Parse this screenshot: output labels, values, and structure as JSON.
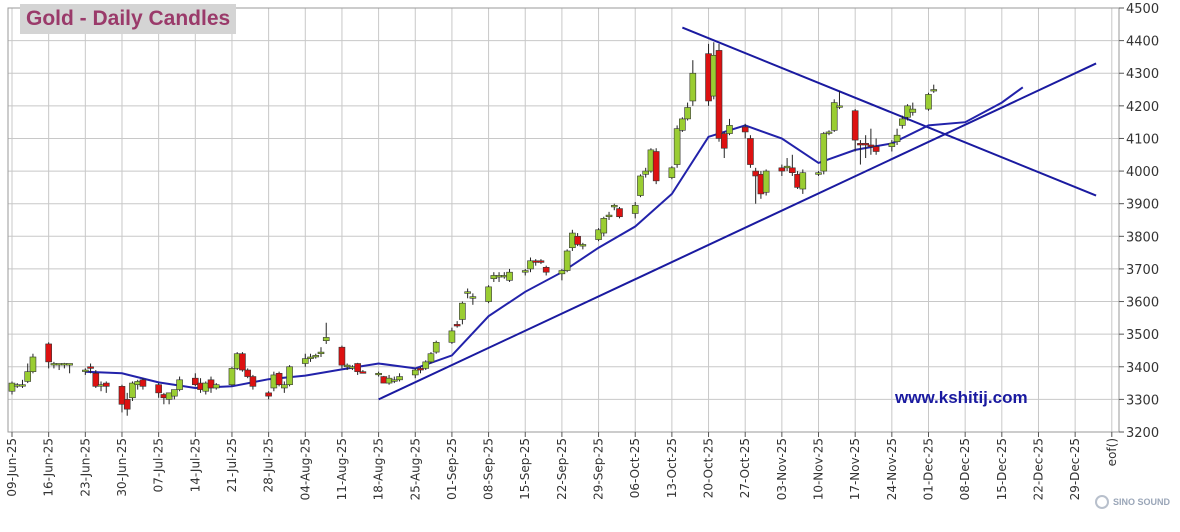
{
  "chart_data": {
    "type": "candlestick",
    "title": "Gold - Daily Candles",
    "annotation": "www.kshitij.com",
    "watermark": "SINO SOUND",
    "y_axis_side": "right",
    "ylim": [
      3200,
      4500
    ],
    "yticks": [
      3200,
      3300,
      3400,
      3500,
      3600,
      3700,
      3800,
      3900,
      4000,
      4100,
      4200,
      4300,
      4400,
      4500
    ],
    "x_tick_labels": [
      "09-Jun-25",
      "16-Jun-25",
      "23-Jun-25",
      "30-Jun-25",
      "07-Jul-25",
      "14-Jul-25",
      "21-Jul-25",
      "28-Jul-25",
      "04-Aug-25",
      "11-Aug-25",
      "18-Aug-25",
      "25-Aug-25",
      "01-Sep-25",
      "08-Sep-25",
      "15-Sep-25",
      "22-Sep-25",
      "29-Sep-25",
      "06-Oct-25",
      "13-Oct-25",
      "20-Oct-25",
      "27-Oct-25",
      "03-Nov-25",
      "10-Nov-25",
      "17-Nov-25",
      "24-Nov-25",
      "01-Dec-25",
      "08-Dec-25",
      "15-Dec-25",
      "22-Dec-25",
      "29-Dec-25",
      "eof()"
    ],
    "grid": true,
    "colors": {
      "up": "#9acd32",
      "down": "#dd1111",
      "wick": "#222222",
      "ma": "#2222aa",
      "trend": "#1a1aa0",
      "grid": "#c8c8c8"
    },
    "candles": [
      {
        "date": "2025-06-09",
        "o": 3325,
        "h": 3355,
        "l": 3315,
        "c": 3350
      },
      {
        "date": "2025-06-10",
        "o": 3345,
        "h": 3350,
        "l": 3335,
        "c": 3345
      },
      {
        "date": "2025-06-11",
        "o": 3345,
        "h": 3360,
        "l": 3335,
        "c": 3345
      },
      {
        "date": "2025-06-12",
        "o": 3355,
        "h": 3410,
        "l": 3350,
        "c": 3385
      },
      {
        "date": "2025-06-13",
        "o": 3385,
        "h": 3440,
        "l": 3380,
        "c": 3430
      },
      {
        "date": "2025-06-16",
        "o": 3470,
        "h": 3475,
        "l": 3395,
        "c": 3415
      },
      {
        "date": "2025-06-17",
        "o": 3410,
        "h": 3415,
        "l": 3395,
        "c": 3410
      },
      {
        "date": "2025-06-18",
        "o": 3410,
        "h": 3410,
        "l": 3390,
        "c": 3410
      },
      {
        "date": "2025-06-19",
        "o": 3410,
        "h": 3412,
        "l": 3395,
        "c": 3410
      },
      {
        "date": "2025-06-20",
        "o": 3405,
        "h": 3410,
        "l": 3380,
        "c": 3410
      },
      {
        "date": "2025-06-23",
        "o": 3390,
        "h": 3395,
        "l": 3375,
        "c": 3390
      },
      {
        "date": "2025-06-24",
        "o": 3400,
        "h": 3410,
        "l": 3380,
        "c": 3395
      },
      {
        "date": "2025-06-25",
        "o": 3380,
        "h": 3390,
        "l": 3335,
        "c": 3340
      },
      {
        "date": "2025-06-26",
        "o": 3345,
        "h": 3355,
        "l": 3325,
        "c": 3345
      },
      {
        "date": "2025-06-27",
        "o": 3350,
        "h": 3355,
        "l": 3320,
        "c": 3340
      },
      {
        "date": "2025-06-30",
        "o": 3340,
        "h": 3345,
        "l": 3260,
        "c": 3285
      },
      {
        "date": "2025-07-01",
        "o": 3300,
        "h": 3320,
        "l": 3250,
        "c": 3270
      },
      {
        "date": "2025-07-02",
        "o": 3305,
        "h": 3355,
        "l": 3295,
        "c": 3350
      },
      {
        "date": "2025-07-03",
        "o": 3345,
        "h": 3360,
        "l": 3330,
        "c": 3355
      },
      {
        "date": "2025-07-04",
        "o": 3360,
        "h": 3365,
        "l": 3330,
        "c": 3340
      },
      {
        "date": "2025-07-07",
        "o": 3345,
        "h": 3350,
        "l": 3305,
        "c": 3320
      },
      {
        "date": "2025-07-08",
        "o": 3315,
        "h": 3320,
        "l": 3285,
        "c": 3305
      },
      {
        "date": "2025-07-09",
        "o": 3300,
        "h": 3320,
        "l": 3285,
        "c": 3320
      },
      {
        "date": "2025-07-10",
        "o": 3310,
        "h": 3330,
        "l": 3300,
        "c": 3330
      },
      {
        "date": "2025-07-11",
        "o": 3330,
        "h": 3370,
        "l": 3325,
        "c": 3360
      },
      {
        "date": "2025-07-14",
        "o": 3365,
        "h": 3380,
        "l": 3340,
        "c": 3345
      },
      {
        "date": "2025-07-15",
        "o": 3350,
        "h": 3365,
        "l": 3320,
        "c": 3330
      },
      {
        "date": "2025-07-16",
        "o": 3325,
        "h": 3355,
        "l": 3315,
        "c": 3350
      },
      {
        "date": "2025-07-17",
        "o": 3360,
        "h": 3370,
        "l": 3320,
        "c": 3335
      },
      {
        "date": "2025-07-18",
        "o": 3335,
        "h": 3350,
        "l": 3330,
        "c": 3345
      },
      {
        "date": "2025-07-21",
        "o": 3345,
        "h": 3400,
        "l": 3340,
        "c": 3395
      },
      {
        "date": "2025-07-22",
        "o": 3395,
        "h": 3445,
        "l": 3390,
        "c": 3440
      },
      {
        "date": "2025-07-23",
        "o": 3440,
        "h": 3445,
        "l": 3385,
        "c": 3390
      },
      {
        "date": "2025-07-24",
        "o": 3390,
        "h": 3395,
        "l": 3365,
        "c": 3370
      },
      {
        "date": "2025-07-25",
        "o": 3370,
        "h": 3375,
        "l": 3330,
        "c": 3340
      },
      {
        "date": "2025-07-28",
        "o": 3320,
        "h": 3325,
        "l": 3300,
        "c": 3310
      },
      {
        "date": "2025-07-29",
        "o": 3335,
        "h": 3385,
        "l": 3325,
        "c": 3375
      },
      {
        "date": "2025-07-30",
        "o": 3380,
        "h": 3385,
        "l": 3340,
        "c": 3345
      },
      {
        "date": "2025-07-31",
        "o": 3335,
        "h": 3355,
        "l": 3320,
        "c": 3345
      },
      {
        "date": "2025-08-01",
        "o": 3345,
        "h": 3405,
        "l": 3340,
        "c": 3400
      },
      {
        "date": "2025-08-04",
        "o": 3410,
        "h": 3440,
        "l": 3400,
        "c": 3425
      },
      {
        "date": "2025-08-05",
        "o": 3425,
        "h": 3440,
        "l": 3415,
        "c": 3430
      },
      {
        "date": "2025-08-06",
        "o": 3430,
        "h": 3440,
        "l": 3425,
        "c": 3435
      },
      {
        "date": "2025-08-07",
        "o": 3440,
        "h": 3460,
        "l": 3430,
        "c": 3445
      },
      {
        "date": "2025-08-08",
        "o": 3480,
        "h": 3535,
        "l": 3470,
        "c": 3490
      },
      {
        "date": "2025-08-11",
        "o": 3460,
        "h": 3465,
        "l": 3395,
        "c": 3405
      },
      {
        "date": "2025-08-12",
        "o": 3400,
        "h": 3410,
        "l": 3390,
        "c": 3405
      },
      {
        "date": "2025-08-13",
        "o": 3400,
        "h": 3405,
        "l": 3390,
        "c": 3400
      },
      {
        "date": "2025-08-14",
        "o": 3410,
        "h": 3412,
        "l": 3375,
        "c": 3385
      },
      {
        "date": "2025-08-15",
        "o": 3385,
        "h": 3390,
        "l": 3380,
        "c": 3380
      },
      {
        "date": "2025-08-18",
        "o": 3380,
        "h": 3385,
        "l": 3370,
        "c": 3380
      },
      {
        "date": "2025-08-19",
        "o": 3370,
        "h": 3372,
        "l": 3350,
        "c": 3350
      },
      {
        "date": "2025-08-20",
        "o": 3350,
        "h": 3375,
        "l": 3345,
        "c": 3365
      },
      {
        "date": "2025-08-21",
        "o": 3360,
        "h": 3370,
        "l": 3350,
        "c": 3360
      },
      {
        "date": "2025-08-22",
        "o": 3360,
        "h": 3380,
        "l": 3355,
        "c": 3370
      },
      {
        "date": "2025-08-25",
        "o": 3375,
        "h": 3395,
        "l": 3365,
        "c": 3390
      },
      {
        "date": "2025-08-26",
        "o": 3395,
        "h": 3400,
        "l": 3380,
        "c": 3390
      },
      {
        "date": "2025-08-27",
        "o": 3395,
        "h": 3420,
        "l": 3390,
        "c": 3415
      },
      {
        "date": "2025-08-28",
        "o": 3415,
        "h": 3445,
        "l": 3410,
        "c": 3440
      },
      {
        "date": "2025-08-29",
        "o": 3445,
        "h": 3480,
        "l": 3440,
        "c": 3475
      },
      {
        "date": "2025-09-01",
        "o": 3475,
        "h": 3520,
        "l": 3470,
        "c": 3510
      },
      {
        "date": "2025-09-02",
        "o": 3530,
        "h": 3540,
        "l": 3520,
        "c": 3525
      },
      {
        "date": "2025-09-03",
        "o": 3545,
        "h": 3600,
        "l": 3530,
        "c": 3595
      },
      {
        "date": "2025-09-04",
        "o": 3625,
        "h": 3640,
        "l": 3610,
        "c": 3630
      },
      {
        "date": "2025-09-05",
        "o": 3610,
        "h": 3625,
        "l": 3590,
        "c": 3615
      },
      {
        "date": "2025-09-08",
        "o": 3600,
        "h": 3650,
        "l": 3595,
        "c": 3645
      },
      {
        "date": "2025-09-09",
        "o": 3670,
        "h": 3690,
        "l": 3660,
        "c": 3680
      },
      {
        "date": "2025-09-10",
        "o": 3675,
        "h": 3690,
        "l": 3660,
        "c": 3680
      },
      {
        "date": "2025-09-11",
        "o": 3680,
        "h": 3690,
        "l": 3670,
        "c": 3680
      },
      {
        "date": "2025-09-12",
        "o": 3665,
        "h": 3700,
        "l": 3660,
        "c": 3690
      },
      {
        "date": "2025-09-15",
        "o": 3690,
        "h": 3700,
        "l": 3680,
        "c": 3695
      },
      {
        "date": "2025-09-16",
        "o": 3700,
        "h": 3735,
        "l": 3690,
        "c": 3725
      },
      {
        "date": "2025-09-17",
        "o": 3725,
        "h": 3730,
        "l": 3710,
        "c": 3720
      },
      {
        "date": "2025-09-18",
        "o": 3725,
        "h": 3730,
        "l": 3715,
        "c": 3720
      },
      {
        "date": "2025-09-19",
        "o": 3705,
        "h": 3710,
        "l": 3680,
        "c": 3690
      },
      {
        "date": "2025-09-22",
        "o": 3685,
        "h": 3700,
        "l": 3665,
        "c": 3695
      },
      {
        "date": "2025-09-23",
        "o": 3695,
        "h": 3760,
        "l": 3690,
        "c": 3755
      },
      {
        "date": "2025-09-24",
        "o": 3765,
        "h": 3820,
        "l": 3755,
        "c": 3810
      },
      {
        "date": "2025-09-25",
        "o": 3800,
        "h": 3810,
        "l": 3770,
        "c": 3775
      },
      {
        "date": "2025-09-26",
        "o": 3770,
        "h": 3780,
        "l": 3760,
        "c": 3775
      },
      {
        "date": "2025-09-29",
        "o": 3790,
        "h": 3825,
        "l": 3785,
        "c": 3820
      },
      {
        "date": "2025-09-30",
        "o": 3810,
        "h": 3860,
        "l": 3800,
        "c": 3855
      },
      {
        "date": "2025-10-01",
        "o": 3860,
        "h": 3875,
        "l": 3850,
        "c": 3865
      },
      {
        "date": "2025-10-02",
        "o": 3890,
        "h": 3900,
        "l": 3880,
        "c": 3895
      },
      {
        "date": "2025-10-03",
        "o": 3885,
        "h": 3890,
        "l": 3855,
        "c": 3860
      },
      {
        "date": "2025-10-06",
        "o": 3870,
        "h": 3905,
        "l": 3855,
        "c": 3895
      },
      {
        "date": "2025-10-07",
        "o": 3925,
        "h": 3990,
        "l": 3920,
        "c": 3985
      },
      {
        "date": "2025-10-08",
        "o": 3990,
        "h": 4010,
        "l": 3980,
        "c": 4000
      },
      {
        "date": "2025-10-09",
        "o": 4000,
        "h": 4070,
        "l": 3995,
        "c": 4065
      },
      {
        "date": "2025-10-10",
        "o": 4060,
        "h": 4070,
        "l": 3960,
        "c": 3970
      },
      {
        "date": "2025-10-13",
        "o": 3980,
        "h": 4015,
        "l": 3975,
        "c": 4010
      },
      {
        "date": "2025-10-14",
        "o": 4020,
        "h": 4140,
        "l": 4010,
        "c": 4130
      },
      {
        "date": "2025-10-15",
        "o": 4125,
        "h": 4165,
        "l": 4120,
        "c": 4160
      },
      {
        "date": "2025-10-16",
        "o": 4160,
        "h": 4210,
        "l": 4155,
        "c": 4195
      },
      {
        "date": "2025-10-17",
        "o": 4215,
        "h": 4340,
        "l": 4200,
        "c": 4300
      },
      {
        "date": "2025-10-20",
        "o": 4360,
        "h": 4390,
        "l": 4200,
        "c": 4215
      },
      {
        "date": "2025-10-21",
        "o": 4230,
        "h": 4395,
        "l": 4220,
        "c": 4355
      },
      {
        "date": "2025-10-22",
        "o": 4370,
        "h": 4390,
        "l": 4090,
        "c": 4100
      },
      {
        "date": "2025-10-23",
        "o": 4115,
        "h": 4120,
        "l": 4040,
        "c": 4070
      },
      {
        "date": "2025-10-24",
        "o": 4115,
        "h": 4160,
        "l": 4110,
        "c": 4140
      },
      {
        "date": "2025-10-27",
        "o": 4135,
        "h": 4145,
        "l": 4100,
        "c": 4120
      },
      {
        "date": "2025-10-28",
        "o": 4100,
        "h": 4110,
        "l": 4010,
        "c": 4020
      },
      {
        "date": "2025-10-29",
        "o": 4000,
        "h": 4010,
        "l": 3900,
        "c": 3985
      },
      {
        "date": "2025-10-30",
        "o": 3990,
        "h": 4000,
        "l": 3915,
        "c": 3930
      },
      {
        "date": "2025-10-31",
        "o": 3935,
        "h": 4005,
        "l": 3925,
        "c": 4000
      },
      {
        "date": "2025-11-03",
        "o": 4010,
        "h": 4020,
        "l": 3985,
        "c": 4000
      },
      {
        "date": "2025-11-04",
        "o": 4010,
        "h": 4040,
        "l": 4000,
        "c": 4015
      },
      {
        "date": "2025-11-05",
        "o": 4010,
        "h": 4050,
        "l": 3985,
        "c": 3995
      },
      {
        "date": "2025-11-06",
        "o": 3990,
        "h": 4000,
        "l": 3945,
        "c": 3950
      },
      {
        "date": "2025-11-07",
        "o": 3945,
        "h": 4005,
        "l": 3930,
        "c": 3995
      },
      {
        "date": "2025-11-10",
        "o": 3990,
        "h": 4000,
        "l": 3985,
        "c": 3995
      },
      {
        "date": "2025-11-11",
        "o": 4000,
        "h": 4120,
        "l": 3990,
        "c": 4115
      },
      {
        "date": "2025-11-12",
        "o": 4120,
        "h": 4125,
        "l": 4110,
        "c": 4120
      },
      {
        "date": "2025-11-13",
        "o": 4125,
        "h": 4220,
        "l": 4120,
        "c": 4210
      },
      {
        "date": "2025-11-14",
        "o": 4200,
        "h": 4245,
        "l": 4190,
        "c": 4200
      },
      {
        "date": "2025-11-17",
        "o": 4185,
        "h": 4190,
        "l": 4060,
        "c": 4095
      },
      {
        "date": "2025-11-18",
        "o": 4085,
        "h": 4095,
        "l": 4020,
        "c": 4080
      },
      {
        "date": "2025-11-19",
        "o": 4085,
        "h": 4110,
        "l": 4040,
        "c": 4080
      },
      {
        "date": "2025-11-20",
        "o": 4080,
        "h": 4130,
        "l": 4050,
        "c": 4075
      },
      {
        "date": "2025-11-21",
        "o": 4075,
        "h": 4100,
        "l": 4050,
        "c": 4060
      },
      {
        "date": "2025-11-24",
        "o": 4075,
        "h": 4095,
        "l": 4060,
        "c": 4085
      },
      {
        "date": "2025-11-25",
        "o": 4090,
        "h": 4130,
        "l": 4080,
        "c": 4110
      },
      {
        "date": "2025-11-26",
        "o": 4140,
        "h": 4170,
        "l": 4130,
        "c": 4160
      },
      {
        "date": "2025-11-27",
        "o": 4165,
        "h": 4205,
        "l": 4155,
        "c": 4200
      },
      {
        "date": "2025-11-28",
        "o": 4180,
        "h": 4210,
        "l": 4170,
        "c": 4190
      },
      {
        "date": "2025-12-01",
        "o": 4190,
        "h": 4240,
        "l": 4185,
        "c": 4235
      },
      {
        "date": "2025-12-02",
        "o": 4250,
        "h": 4265,
        "l": 4240,
        "c": 4250
      }
    ],
    "moving_average": {
      "points": [
        {
          "date": "2025-06-23",
          "value": 3385
        },
        {
          "date": "2025-06-30",
          "value": 3380
        },
        {
          "date": "2025-07-07",
          "value": 3352
        },
        {
          "date": "2025-07-14",
          "value": 3335
        },
        {
          "date": "2025-07-21",
          "value": 3340
        },
        {
          "date": "2025-07-28",
          "value": 3362
        },
        {
          "date": "2025-08-04",
          "value": 3373
        },
        {
          "date": "2025-08-11",
          "value": 3392
        },
        {
          "date": "2025-08-18",
          "value": 3410
        },
        {
          "date": "2025-08-25",
          "value": 3395
        },
        {
          "date": "2025-09-01",
          "value": 3435
        },
        {
          "date": "2025-09-08",
          "value": 3555
        },
        {
          "date": "2025-09-15",
          "value": 3630
        },
        {
          "date": "2025-09-22",
          "value": 3690
        },
        {
          "date": "2025-09-29",
          "value": 3765
        },
        {
          "date": "2025-10-06",
          "value": 3830
        },
        {
          "date": "2025-10-13",
          "value": 3930
        },
        {
          "date": "2025-10-20",
          "value": 4105
        },
        {
          "date": "2025-10-27",
          "value": 4140
        },
        {
          "date": "2025-11-03",
          "value": 4100
        },
        {
          "date": "2025-11-10",
          "value": 4025
        },
        {
          "date": "2025-11-17",
          "value": 4065
        },
        {
          "date": "2025-11-24",
          "value": 4085
        },
        {
          "date": "2025-12-01",
          "value": 4140
        },
        {
          "date": "2025-12-08",
          "value": 4150
        },
        {
          "date": "2025-12-15",
          "value": 4210
        },
        {
          "date": "2025-12-19",
          "value": 4257
        }
      ]
    },
    "trendlines": [
      {
        "from": {
          "date": "2025-08-18",
          "value": 3300
        },
        "to": {
          "date": "2026-01-02",
          "value": 4330
        }
      },
      {
        "from": {
          "date": "2025-10-15",
          "value": 4440
        },
        "to": {
          "date": "2026-01-02",
          "value": 3925
        }
      }
    ]
  }
}
